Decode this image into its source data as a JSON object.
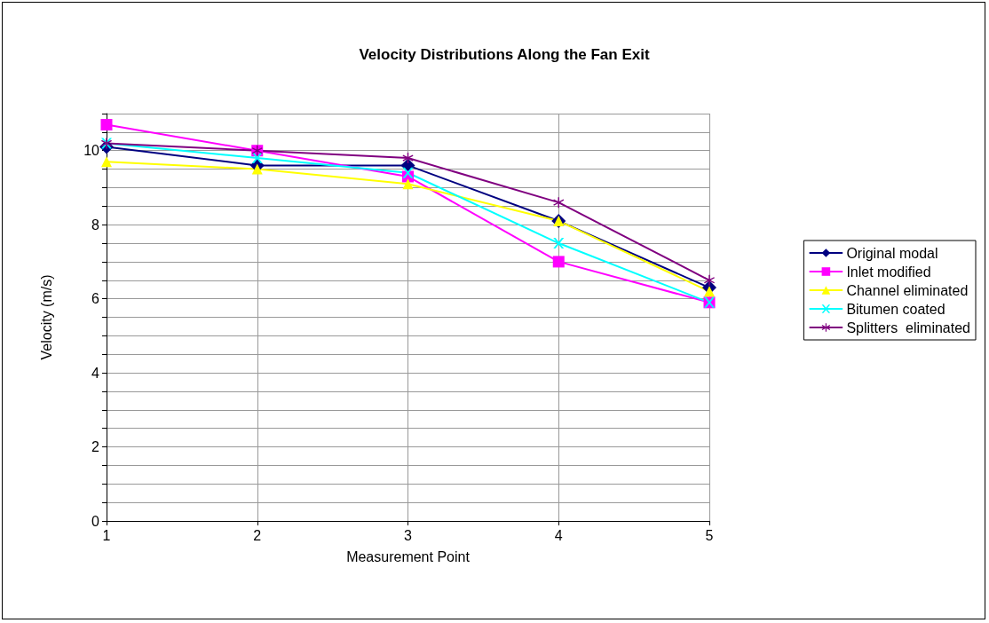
{
  "chart_data": {
    "type": "line",
    "title": "Velocity Distributions Along the Fan Exit",
    "xlabel": "Measurement Point",
    "ylabel": "Velocity (m/s)",
    "x": [
      1,
      2,
      3,
      4,
      5
    ],
    "xlim": [
      1,
      5
    ],
    "xticks": [
      1,
      2,
      3,
      4,
      5
    ],
    "ylim": [
      0,
      11
    ],
    "yticks": [
      0,
      {
        "value": 0.5,
        "label": null
      },
      {
        "value": 1,
        "label": null
      },
      {
        "value": 1.5,
        "label": null
      },
      2,
      {
        "value": 2.5,
        "label": null
      },
      {
        "value": 3,
        "label": null
      },
      {
        "value": 3.5,
        "label": null
      },
      4,
      {
        "value": 4.5,
        "label": null
      },
      {
        "value": 5,
        "label": null
      },
      {
        "value": 5.5,
        "label": null
      },
      6,
      {
        "value": 6.5,
        "label": null
      },
      {
        "value": 7,
        "label": null
      },
      {
        "value": 7.5,
        "label": null
      },
      8,
      {
        "value": 8.5,
        "label": null
      },
      {
        "value": 9,
        "label": null
      },
      {
        "value": 9.5,
        "label": null
      },
      10,
      {
        "value": 10.5,
        "label": null
      },
      {
        "value": 11,
        "label": null
      }
    ],
    "grid": true,
    "legend": "right",
    "line_style": "solid",
    "series": [
      {
        "name": "Original modal",
        "color": "#000080",
        "marker": "diamond",
        "values": [
          10.1,
          9.6,
          9.6,
          8.1,
          6.3
        ]
      },
      {
        "name": "Inlet modified",
        "color": "#ff00ff",
        "marker": "square",
        "values": [
          10.7,
          10.0,
          9.3,
          7.0,
          5.9
        ]
      },
      {
        "name": "Channel eliminated",
        "color": "#ffff00",
        "marker": "triangle",
        "values": [
          9.7,
          9.5,
          9.1,
          8.1,
          6.2
        ]
      },
      {
        "name": "Bitumen coated",
        "color": "#00ffff",
        "marker": "cross",
        "values": [
          10.2,
          9.8,
          9.4,
          7.5,
          5.9
        ]
      },
      {
        "name": "Splitters  eliminated",
        "color": "#800080",
        "marker": "star",
        "values": [
          10.2,
          10.0,
          9.8,
          8.6,
          6.5
        ]
      }
    ]
  }
}
